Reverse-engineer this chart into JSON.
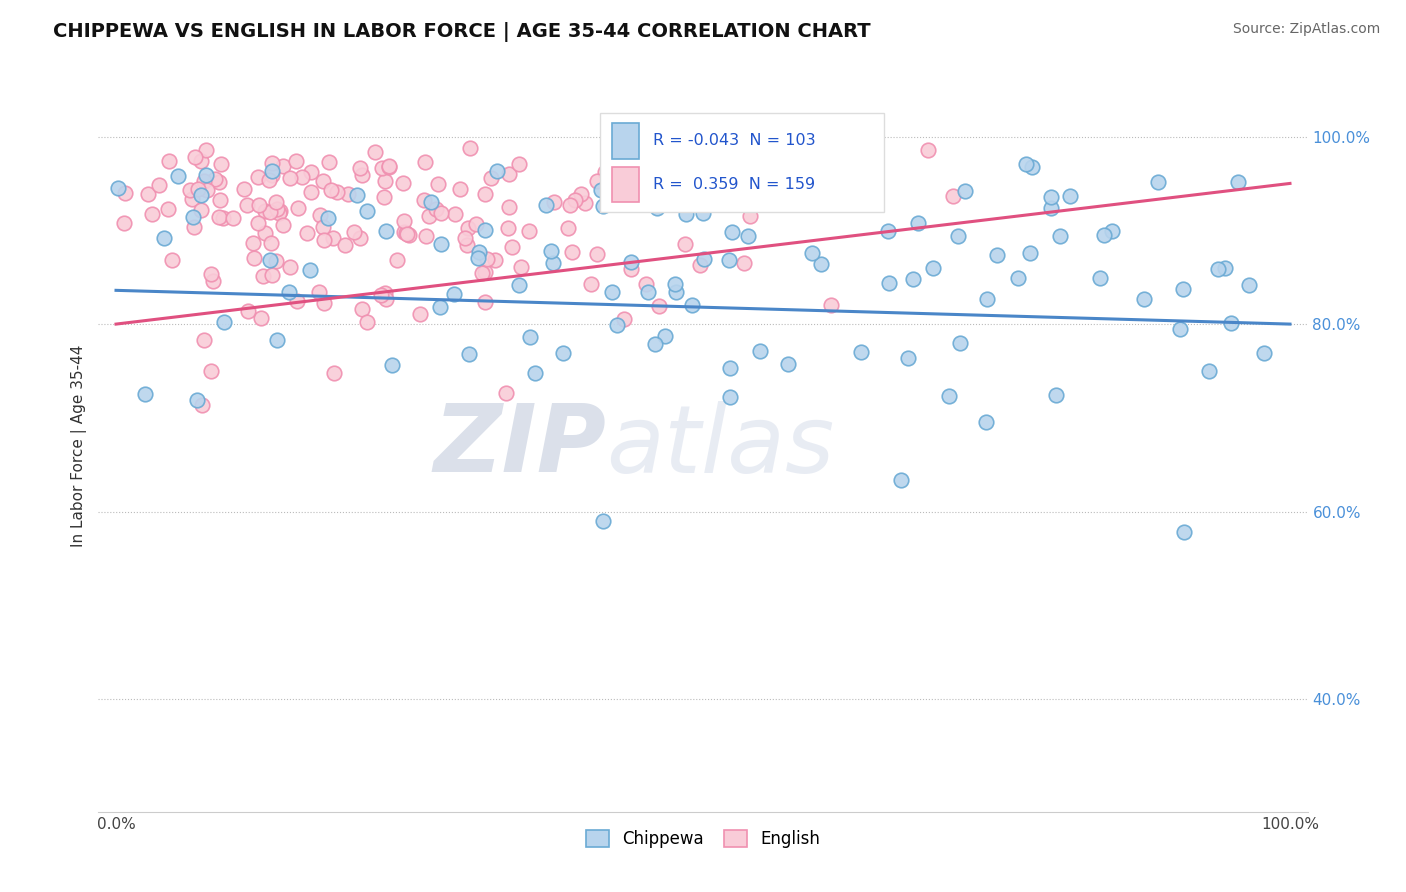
{
  "title": "CHIPPEWA VS ENGLISH IN LABOR FORCE | AGE 35-44 CORRELATION CHART",
  "source": "Source: ZipAtlas.com",
  "ylabel": "In Labor Force | Age 35-44",
  "background_color": "#ffffff",
  "chippewa_R": "-0.043",
  "chippewa_N": "103",
  "english_R": "0.359",
  "english_N": "159",
  "chippewa_marker_face": "#b8d4ed",
  "chippewa_marker_edge": "#6aaad4",
  "english_marker_face": "#f9ccd8",
  "english_marker_edge": "#f090b0",
  "trend_blue": "#4a86c8",
  "trend_pink": "#e05080",
  "watermark_color": "#c8d8e8",
  "y_ticks": [
    0.4,
    0.6,
    0.8,
    1.0
  ],
  "y_tick_labels": [
    "40.0%",
    "60.0%",
    "80.0%",
    "100.0%"
  ],
  "x_ticks": [
    0.0,
    1.0
  ],
  "x_tick_labels": [
    "0.0%",
    "100.0%"
  ],
  "chippewa_trend_x": [
    0.0,
    1.0
  ],
  "chippewa_trend_y": [
    0.836,
    0.8
  ],
  "english_trend_x": [
    0.0,
    1.0
  ],
  "english_trend_y": [
    0.8,
    0.95
  ]
}
